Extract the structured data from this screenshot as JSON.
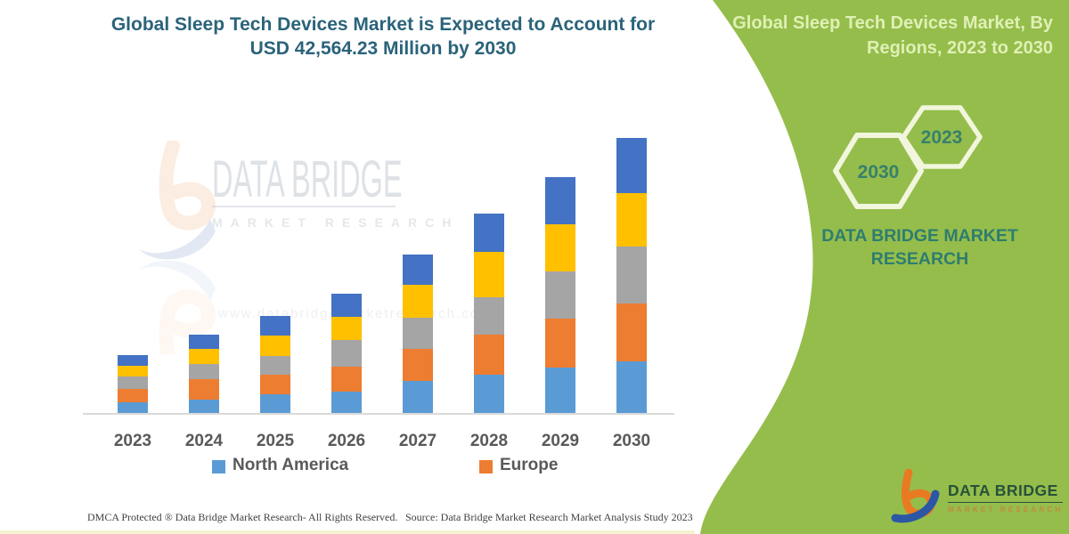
{
  "colors": {
    "panel_green": "#95BD4B",
    "panel_title_text": "#DFF0B5",
    "hexagon_outline": "#F1F6DC",
    "hexagon_year_text": "#37806C",
    "brand_teal_text": "#2E7D6E",
    "left_title_text": "#2A637A",
    "axis_label_text": "#595959",
    "axis_line": "#D9D9D9",
    "footer_text": "#3F3F3F",
    "logo_orange": "#E87B22",
    "logo_blue": "#2B57A5",
    "logo_green_text": "#27523A",
    "logo_sub_text": "#C08A3E",
    "watermark_gray": "#AEB8C2"
  },
  "left_panel": {
    "title_line1": "Global Sleep Tech Devices Market is Expected to Account for",
    "title_line2": "USD 42,564.23 Million by 2030",
    "footer_left": "DMCA Protected ® Data Bridge Market Research-  All Rights Reserved.",
    "footer_right": "Source: Data Bridge Market Research  Market Analysis Study 2023",
    "watermark": {
      "brand": "DATA BRIDGE",
      "sub": "MARKET RESEARCH",
      "website": "www.databridgemarketresearch.com"
    }
  },
  "chart_data": {
    "type": "bar",
    "stacked": true,
    "stack_order": "bottom_to_top",
    "title": "Global Sleep Tech Devices Market is Expected to Account for USD 42,564.23 Million by 2030",
    "unit": "USD Million",
    "annotation_total_2030": 42564.23,
    "xlabel": "",
    "ylabel": "",
    "grid": false,
    "y_axis_visible": false,
    "legend_position": "bottom",
    "categories": [
      "2023",
      "2024",
      "2025",
      "2026",
      "2027",
      "2028",
      "2029",
      "2030"
    ],
    "series": [
      {
        "name": "North America",
        "color": "#5B9BD5",
        "values": [
          1650,
          2070,
          2890,
          3310,
          4960,
          5920,
          7020,
          7990
        ]
      },
      {
        "name": "Europe",
        "color": "#ED7D31",
        "values": [
          2070,
          3170,
          3030,
          3860,
          4960,
          6200,
          7570,
          8950
        ]
      },
      {
        "name": "unlabeled (gray)",
        "color": "#A5A5A5",
        "values": [
          1930,
          2340,
          2890,
          4130,
          4820,
          5780,
          7300,
          8810
        ]
      },
      {
        "name": "unlabeled (yellow)",
        "color": "#FFC000",
        "values": [
          1650,
          2340,
          3170,
          3580,
          5100,
          7020,
          7300,
          8260
        ]
      },
      {
        "name": "unlabeled (dark blue)",
        "color": "#4472C4",
        "values": [
          1650,
          2200,
          3030,
          3580,
          4680,
          5920,
          7300,
          8540
        ]
      }
    ],
    "legend_items": [
      {
        "label": "North America",
        "color": "#5B9BD5"
      },
      {
        "label": "Europe",
        "color": "#ED7D31"
      }
    ]
  },
  "right_panel": {
    "title_line1": "Global Sleep Tech Devices Market, By",
    "title_line2": "Regions, 2023 to 2030",
    "hexagon_large_year": "2030",
    "hexagon_small_year": "2023",
    "brand_line1": "DATA BRIDGE MARKET",
    "brand_line2": "RESEARCH",
    "logo": {
      "brand": "DATA BRIDGE",
      "sub": "MARKET RESEARCH"
    }
  }
}
